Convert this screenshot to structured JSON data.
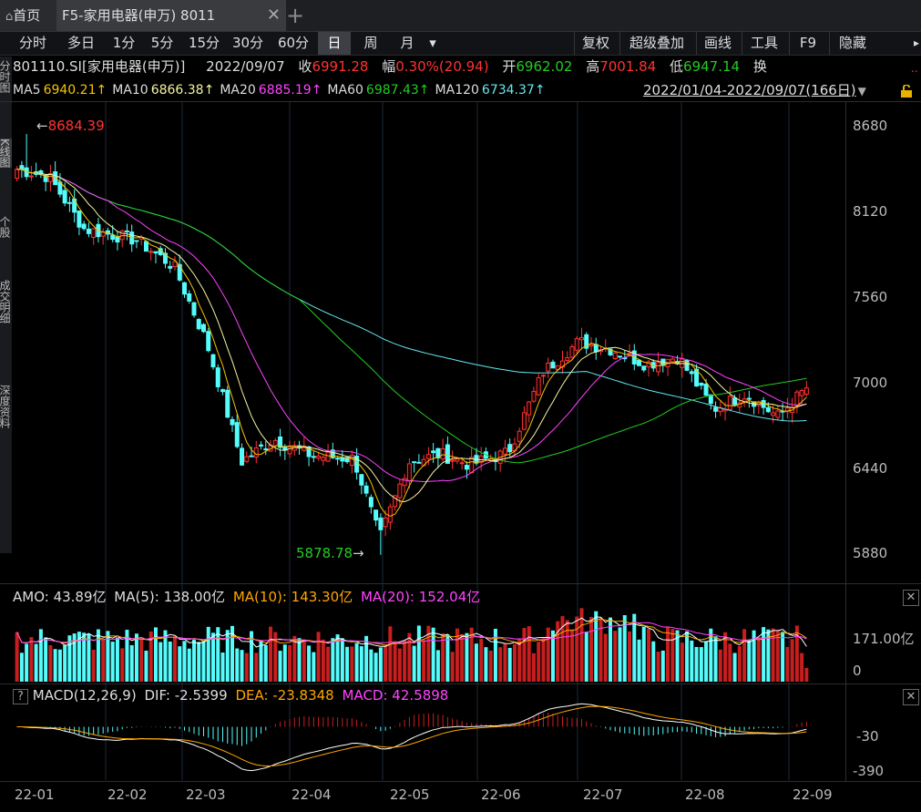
{
  "tabs": {
    "home": "首页",
    "main": "F5-家用电器(申万) 8011",
    "add": "+",
    "close": "✕"
  },
  "toolbar": {
    "periods": [
      "分时",
      "多日",
      "1分",
      "5分",
      "15分",
      "30分",
      "60分",
      "日",
      "周",
      "月"
    ],
    "active_period": "日",
    "dropdown": "▾",
    "right": [
      "复权",
      "超级叠加",
      "画线",
      "工具",
      "F9",
      "隐藏"
    ],
    "hide_arrow": "▸"
  },
  "left_tabs": [
    "分时图",
    "K线图",
    "个股",
    "成交明细",
    "深度资料"
  ],
  "quote": {
    "code_name": "801110.SI[家用电器(申万)]",
    "date": "2022/09/07",
    "close_label": "收",
    "close": "6991.28",
    "change_label": "幅",
    "change": "0.30%(20.94)",
    "open_label": "开",
    "open": "6962.02",
    "high_label": "高",
    "high": "7001.84",
    "low_label": "低",
    "low": "6947.14",
    "turnover_label": "换"
  },
  "ma_bar": {
    "items": [
      {
        "label": "MA5",
        "value": "6940.21↑",
        "color": "#f5c400"
      },
      {
        "label": "MA10",
        "value": "6866.38↑",
        "color": "#f5f5a0"
      },
      {
        "label": "MA20",
        "value": "6885.19↑",
        "color": "#ff44ff"
      },
      {
        "label": "MA60",
        "value": "6987.43↑",
        "color": "#22cc22"
      },
      {
        "label": "MA120",
        "value": "6734.37↑",
        "color": "#66e6ee"
      }
    ],
    "range": "2022/01/04-2022/09/07(166日)",
    "range_arrow": "▼"
  },
  "price_axis": [
    "8680",
    "8120",
    "7560",
    "7000",
    "6440",
    "5880"
  ],
  "annotations": {
    "high": "8684.39",
    "low": "5878.78"
  },
  "amo": {
    "title": "AMO: 43.89亿",
    "ma5": "MA(5): 138.00亿",
    "ma10": "MA(10): 143.30亿",
    "ma20": "MA(20): 152.04亿",
    "axis": [
      "171.00亿",
      "0"
    ]
  },
  "macd": {
    "help": "?",
    "title": "MACD(12,26,9)",
    "dif": "DIF: -2.5399",
    "dea": "DEA: -23.8348",
    "macd": "MACD: 42.5898",
    "axis": [
      "-30",
      "-390"
    ]
  },
  "date_axis": [
    "22-01",
    "22-02",
    "22-03",
    "22-04",
    "22-05",
    "22-06",
    "22-07",
    "22-08",
    "22-09"
  ],
  "colors": {
    "up": "#ff3232",
    "down": "#54fcfc",
    "ma5": "#f5c400",
    "ma10": "#f5f5a0",
    "ma20": "#ff44ff",
    "ma60": "#22cc22",
    "ma120": "#66e6ee",
    "dif": "#ffffff",
    "dea": "#ffa500"
  },
  "chart_data": {
    "type": "candlestick",
    "period": "daily",
    "date_range": [
      "2022/01/04",
      "2022/09/07"
    ],
    "close_anchors": [
      {
        "date": "2022/01/04",
        "value": 8450
      },
      {
        "date": "2022/01/14",
        "value": 8400
      },
      {
        "date": "2022/01/25",
        "value": 8050
      },
      {
        "date": "2022/02/10",
        "value": 7980
      },
      {
        "date": "2022/02/22",
        "value": 7800
      },
      {
        "date": "2022/03/04",
        "value": 7300
      },
      {
        "date": "2022/03/15",
        "value": 6500
      },
      {
        "date": "2022/03/25",
        "value": 6650
      },
      {
        "date": "2022/04/06",
        "value": 6540
      },
      {
        "date": "2022/04/19",
        "value": 6520
      },
      {
        "date": "2022/04/27",
        "value": 5990
      },
      {
        "date": "2022/05/06",
        "value": 6500
      },
      {
        "date": "2022/05/16",
        "value": 6550
      },
      {
        "date": "2022/05/25",
        "value": 6480
      },
      {
        "date": "2022/06/06",
        "value": 6560
      },
      {
        "date": "2022/06/17",
        "value": 7100
      },
      {
        "date": "2022/06/28",
        "value": 7300
      },
      {
        "date": "2022/07/08",
        "value": 7250
      },
      {
        "date": "2022/07/19",
        "value": 7150
      },
      {
        "date": "2022/07/29",
        "value": 7200
      },
      {
        "date": "2022/08/09",
        "value": 6850
      },
      {
        "date": "2022/08/19",
        "value": 6950
      },
      {
        "date": "2022/08/29",
        "value": 6800
      },
      {
        "date": "2022/09/07",
        "value": 6991.28
      }
    ],
    "high": 8684.39,
    "low": 5878.78,
    "ylim": [
      5750,
      8800
    ],
    "amo_ylim": [
      0,
      250
    ],
    "macd_ylim": [
      -450,
      200
    ]
  }
}
